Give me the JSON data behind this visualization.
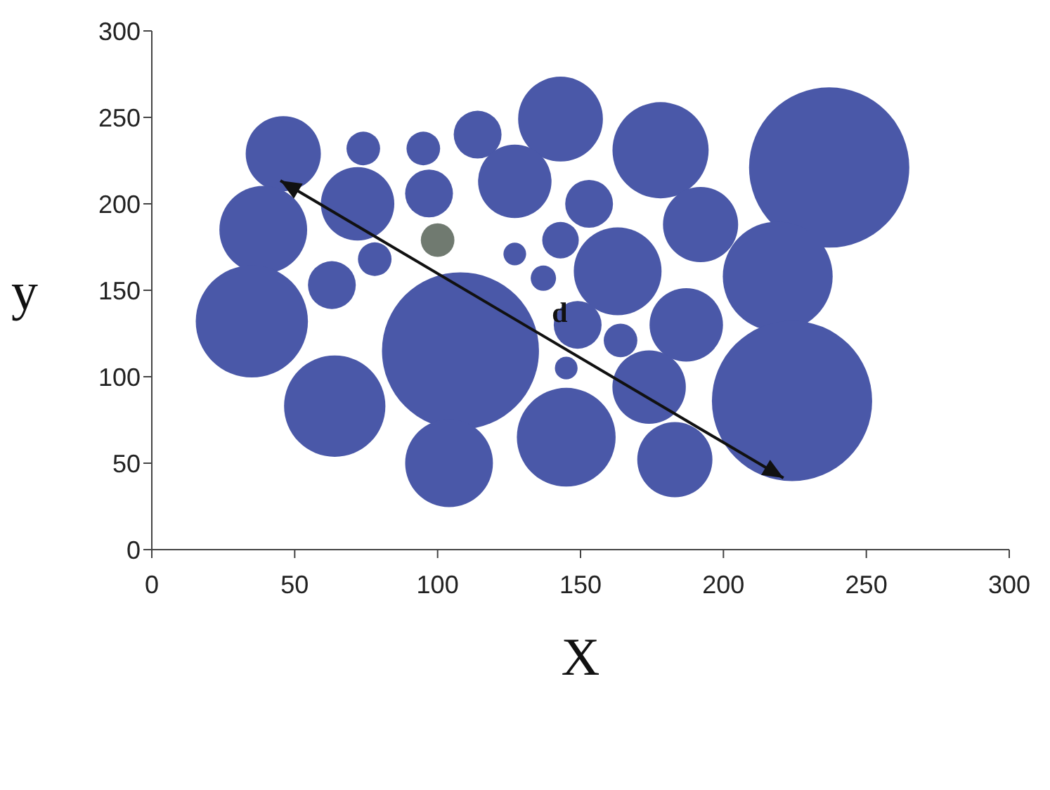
{
  "chart_data": {
    "type": "bubble",
    "xlabel": "X",
    "ylabel": "y",
    "x": [
      46,
      74,
      95,
      114,
      143,
      178,
      237,
      39,
      72,
      97,
      127,
      153,
      192,
      100,
      143,
      127,
      78,
      63,
      163,
      137,
      219,
      35,
      108,
      149,
      164,
      187,
      145,
      174,
      64,
      224,
      145,
      104,
      183
    ],
    "values": [
      229,
      232,
      232,
      240,
      249,
      231,
      221,
      185,
      200,
      206,
      213,
      200,
      188,
      179,
      179,
      171,
      168,
      153,
      161,
      157,
      158,
      132,
      115,
      130,
      121,
      130,
      105,
      94,
      83,
      86,
      65,
      50,
      52
    ],
    "sizes": [
      0.22,
      0.044,
      0.044,
      0.089,
      0.28,
      0.36,
      1,
      0.3,
      0.21,
      0.089,
      0.21,
      0.089,
      0.22,
      0.044,
      0.052,
      0.02,
      0.044,
      0.089,
      0.3,
      0.025,
      0.47,
      0.49,
      0.96,
      0.089,
      0.044,
      0.21,
      0.02,
      0.21,
      0.4,
      1,
      0.38,
      0.3,
      0.22
    ],
    "colors": [
      "#4a58a8",
      "#4a58a8",
      "#4a58a8",
      "#4a58a8",
      "#4a58a8",
      "#4a58a8",
      "#4a58a8",
      "#4a58a8",
      "#4a58a8",
      "#4a58a8",
      "#4a58a8",
      "#4a58a8",
      "#4a58a8",
      "#707a70",
      "#4a58a8",
      "#4a58a8",
      "#4a58a8",
      "#4a58a8",
      "#4a58a8",
      "#4a58a8",
      "#4a58a8",
      "#4a58a8",
      "#4a58a8",
      "#4a58a8",
      "#4a58a8",
      "#4a58a8",
      "#4a58a8",
      "#4a58a8",
      "#4a58a8",
      "#4a58a8",
      "#4a58a8",
      "#4a58a8",
      "#4a58a8"
    ],
    "xlim": [
      0,
      300
    ],
    "ylim": [
      0,
      300
    ],
    "xticks": [
      0,
      50,
      100,
      150,
      200,
      250,
      300
    ],
    "yticks": [
      0,
      50,
      100,
      150,
      200,
      250,
      300
    ],
    "annotations": [
      {
        "text": "d",
        "x": 140,
        "y": 162
      }
    ],
    "grid": false,
    "legend": false
  }
}
